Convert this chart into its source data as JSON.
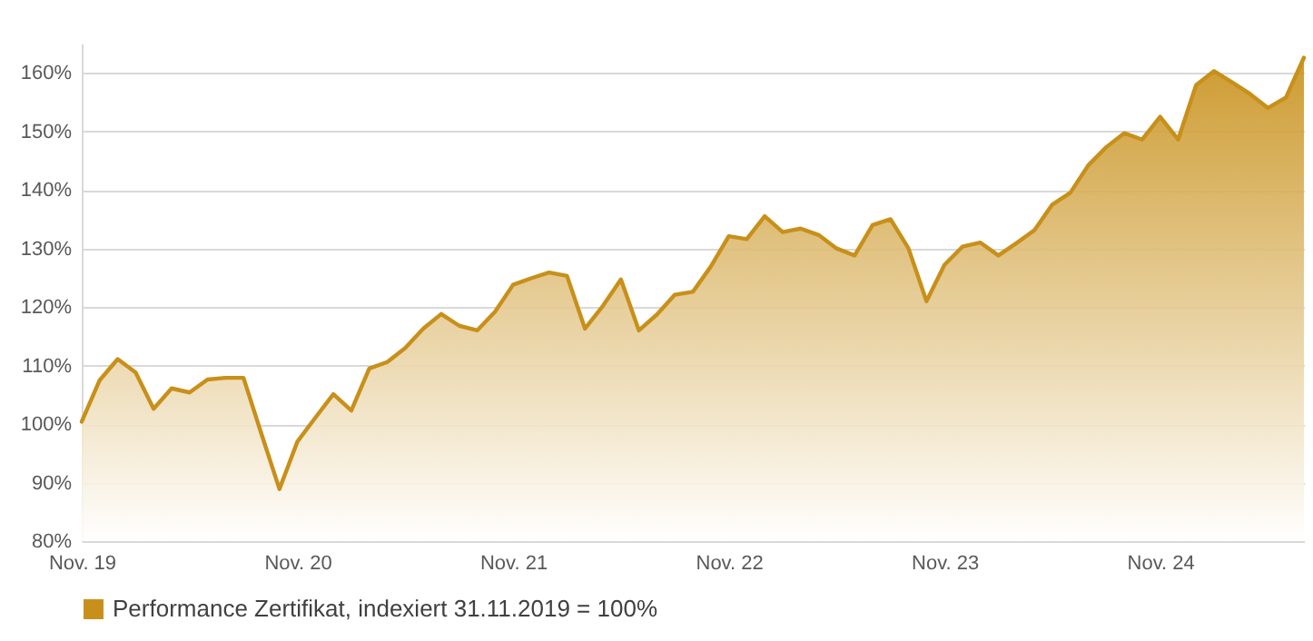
{
  "chart_data": {
    "type": "area",
    "categories": [
      "Nov. 19",
      null,
      null,
      null,
      null,
      null,
      null,
      null,
      null,
      null,
      null,
      null,
      "Nov. 20",
      null,
      null,
      null,
      null,
      null,
      null,
      null,
      null,
      null,
      null,
      null,
      "Nov. 21",
      null,
      null,
      null,
      null,
      null,
      null,
      null,
      null,
      null,
      null,
      null,
      "Nov. 22",
      null,
      null,
      null,
      null,
      null,
      null,
      null,
      null,
      null,
      null,
      null,
      "Nov. 23",
      null,
      null,
      null,
      null,
      null,
      null,
      null,
      null,
      null,
      null,
      null,
      "Nov. 24",
      null,
      null,
      null,
      null,
      null,
      null,
      null,
      null
    ],
    "series": [
      {
        "name": "Performance Zertifikat, indexiert  31.11.2019 = 100%",
        "color": "#c8901a",
        "values": [
          100.4,
          107.5,
          111.1,
          108.8,
          102.6,
          106.1,
          105.4,
          107.6,
          107.9,
          107.9,
          98.3,
          88.9,
          97.0,
          101.1,
          105.1,
          102.3,
          109.5,
          110.6,
          113.0,
          116.3,
          118.8,
          116.8,
          116.0,
          119.2,
          123.8,
          124.9,
          125.9,
          125.3,
          116.3,
          120.2,
          124.7,
          116.0,
          118.7,
          122.1,
          122.6,
          126.9,
          132.1,
          131.6,
          135.5,
          132.8,
          133.4,
          132.3,
          130.0,
          128.8,
          134.0,
          135.0,
          130.0,
          121.0,
          127.2,
          130.3,
          131.0,
          128.8,
          130.9,
          133.1,
          137.5,
          139.5,
          144.2,
          147.3,
          149.7,
          148.6,
          152.5,
          148.6,
          157.9,
          160.3,
          158.4,
          156.4,
          154.0,
          155.8,
          162.6
        ]
      }
    ],
    "ylim": [
      80,
      165
    ],
    "yticks": [
      {
        "value": 80,
        "label": "80%"
      },
      {
        "value": 90,
        "label": "90%"
      },
      {
        "value": 100,
        "label": "100%"
      },
      {
        "value": 110,
        "label": "110%"
      },
      {
        "value": 120,
        "label": "120%"
      },
      {
        "value": 130,
        "label": "130%"
      },
      {
        "value": 140,
        "label": "140%"
      },
      {
        "value": 150,
        "label": "150%"
      },
      {
        "value": 160,
        "label": "160%"
      }
    ],
    "grid": "y",
    "legend": "bottom"
  }
}
